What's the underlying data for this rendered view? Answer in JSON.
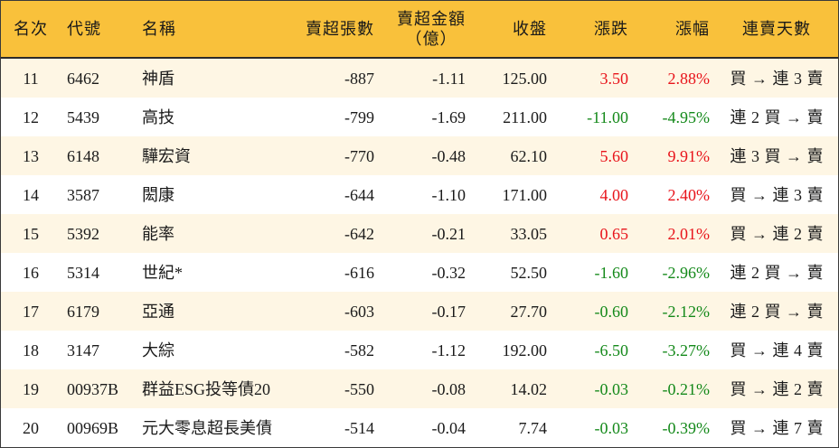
{
  "colors": {
    "header_bg": "#F9C13B",
    "row_alt_bg": "#FEF6E4",
    "rise": "#E8141B",
    "fall": "#14891A",
    "text": "#1A1A1A"
  },
  "header": {
    "columns": [
      {
        "label": "名次"
      },
      {
        "label": "代號"
      },
      {
        "label": "名稱"
      },
      {
        "label": "賣超張數"
      },
      {
        "label": "賣超金額",
        "sub": "（億）"
      },
      {
        "label": "收盤"
      },
      {
        "label": "漲跌"
      },
      {
        "label": "漲幅"
      },
      {
        "label": "連賣天數"
      }
    ]
  },
  "rows": [
    {
      "rank": "11",
      "code": "6462",
      "name": "神盾",
      "net_sell_lots": "-887",
      "net_sell_amount": "-1.11",
      "close": "125.00",
      "change": "3.50",
      "change_pct": "2.88%",
      "streak": "買 → 連 3 賣"
    },
    {
      "rank": "12",
      "code": "5439",
      "name": "高技",
      "net_sell_lots": "-799",
      "net_sell_amount": "-1.69",
      "close": "211.00",
      "change": "-11.00",
      "change_pct": "-4.95%",
      "streak": "連 2 買 → 賣"
    },
    {
      "rank": "13",
      "code": "6148",
      "name": "驊宏資",
      "net_sell_lots": "-770",
      "net_sell_amount": "-0.48",
      "close": "62.10",
      "change": "5.60",
      "change_pct": "9.91%",
      "streak": "連 3 買 → 賣"
    },
    {
      "rank": "14",
      "code": "3587",
      "name": "閎康",
      "net_sell_lots": "-644",
      "net_sell_amount": "-1.10",
      "close": "171.00",
      "change": "4.00",
      "change_pct": "2.40%",
      "streak": "買 → 連 3 賣"
    },
    {
      "rank": "15",
      "code": "5392",
      "name": "能率",
      "net_sell_lots": "-642",
      "net_sell_amount": "-0.21",
      "close": "33.05",
      "change": "0.65",
      "change_pct": "2.01%",
      "streak": "買 → 連 2 賣"
    },
    {
      "rank": "16",
      "code": "5314",
      "name": "世紀*",
      "net_sell_lots": "-616",
      "net_sell_amount": "-0.32",
      "close": "52.50",
      "change": "-1.60",
      "change_pct": "-2.96%",
      "streak": "連 2 買 → 賣"
    },
    {
      "rank": "17",
      "code": "6179",
      "name": "亞通",
      "net_sell_lots": "-603",
      "net_sell_amount": "-0.17",
      "close": "27.70",
      "change": "-0.60",
      "change_pct": "-2.12%",
      "streak": "連 2 買 → 賣"
    },
    {
      "rank": "18",
      "code": "3147",
      "name": "大綜",
      "net_sell_lots": "-582",
      "net_sell_amount": "-1.12",
      "close": "192.00",
      "change": "-6.50",
      "change_pct": "-3.27%",
      "streak": "買 → 連 4 賣"
    },
    {
      "rank": "19",
      "code": "00937B",
      "name": "群益ESG投等債20",
      "net_sell_lots": "-550",
      "net_sell_amount": "-0.08",
      "close": "14.02",
      "change": "-0.03",
      "change_pct": "-0.21%",
      "streak": "買 → 連 2 賣"
    },
    {
      "rank": "20",
      "code": "00969B",
      "name": "元大零息超長美債",
      "net_sell_lots": "-514",
      "net_sell_amount": "-0.04",
      "close": "7.74",
      "change": "-0.03",
      "change_pct": "-0.39%",
      "streak": "買 → 連 7 賣"
    }
  ]
}
